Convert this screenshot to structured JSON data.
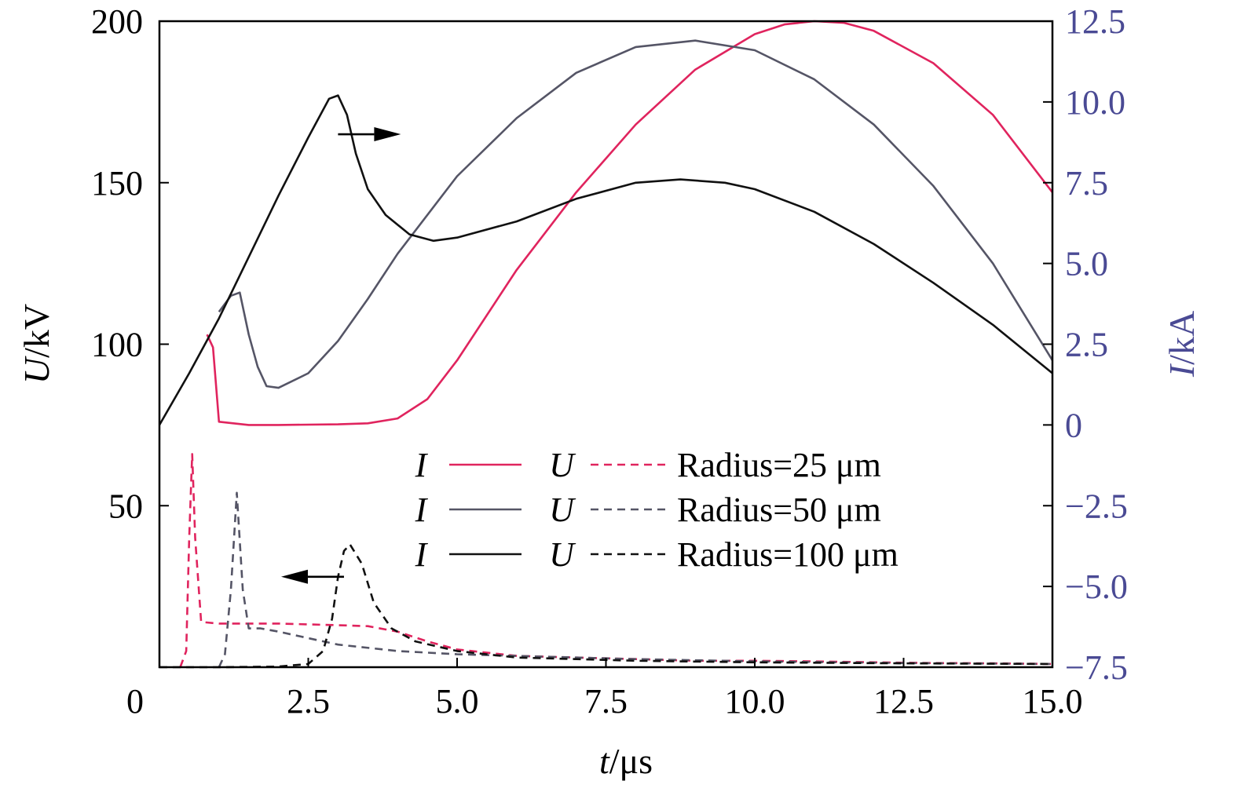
{
  "colors": {
    "axis": "#000000",
    "right_axis": "#4a4a94",
    "r25": "#e0245e",
    "r50": "#555566",
    "r50_tail": "#4a4a94",
    "r100": "#111111",
    "arrow": "#000000"
  },
  "chart_data": {
    "type": "line",
    "xlabel": {
      "var": "t",
      "unit": "/μs"
    },
    "ylabel_left": {
      "var": "U",
      "unit": "/kV"
    },
    "ylabel_right": {
      "var": "I",
      "unit": "/kA"
    },
    "xlim": [
      0,
      15
    ],
    "ylim_left": [
      0,
      200
    ],
    "ylim_right": [
      -7.5,
      12.5
    ],
    "x_ticks": [
      "0",
      "2.5",
      "5.0",
      "7.5",
      "10.0",
      "12.5",
      "15.0"
    ],
    "x_tick_values": [
      0,
      2.5,
      5.0,
      7.5,
      10.0,
      12.5,
      15.0
    ],
    "y_left_ticks": [
      "50",
      "100",
      "150",
      "200"
    ],
    "y_left_tick_values": [
      50,
      100,
      150,
      200
    ],
    "y_right_ticks": [
      "12.5",
      "10.0",
      "7.5",
      "5.0",
      "2.5",
      "0",
      "−2.5",
      "−5.0",
      "−7.5"
    ],
    "y_right_tick_values": [
      12.5,
      10.0,
      7.5,
      5.0,
      2.5,
      0,
      -2.5,
      -5.0,
      -7.5
    ],
    "legend": [
      {
        "i_label": "I",
        "u_label": "U",
        "text": "Radius=25 μm",
        "color_key": "r25"
      },
      {
        "i_label": "I",
        "u_label": "U",
        "text": "Radius=50 μm",
        "color_key": "r50"
      },
      {
        "i_label": "I",
        "u_label": "U",
        "text": "Radius=100 μm",
        "color_key": "r100"
      }
    ],
    "annotations": [
      {
        "type": "arrow",
        "points_to": "right_axis",
        "at": [
          3.0,
          9.0
        ]
      },
      {
        "type": "arrow",
        "points_to": "left_axis",
        "at": [
          3.1,
          28
        ]
      }
    ],
    "series": [
      {
        "name": "Radius=25 μm",
        "quantity": "I",
        "axis": "right",
        "style": "solid",
        "color_key": "r25",
        "x": [
          0.8,
          0.9,
          1.0,
          1.5,
          2.0,
          3.0,
          3.5,
          4.0,
          4.5,
          5.0,
          6.0,
          7.0,
          8.0,
          9.0,
          10.0,
          10.5,
          11.0,
          11.5,
          12.0,
          13.0,
          14.0,
          15.0
        ],
        "y": [
          2.8,
          2.4,
          0.1,
          0.0,
          0.0,
          0.02,
          0.05,
          0.2,
          0.8,
          2.0,
          4.8,
          7.2,
          9.3,
          11.0,
          12.1,
          12.4,
          12.5,
          12.45,
          12.2,
          11.2,
          9.6,
          7.2
        ]
      },
      {
        "name": "Radius=50 μm",
        "quantity": "I",
        "axis": "right",
        "style": "solid",
        "color_key": "r50",
        "x": [
          1.0,
          1.2,
          1.35,
          1.5,
          1.65,
          1.8,
          2.0,
          2.5,
          3.0,
          3.5,
          4.0,
          5.0,
          6.0,
          7.0,
          8.0,
          9.0,
          10.0,
          11.0,
          12.0,
          13.0,
          14.0,
          15.0
        ],
        "y": [
          3.5,
          4.0,
          4.1,
          2.8,
          1.8,
          1.2,
          1.15,
          1.6,
          2.6,
          3.9,
          5.3,
          7.7,
          9.5,
          10.9,
          11.7,
          11.9,
          11.6,
          10.7,
          9.3,
          7.4,
          5.0,
          2.0
        ]
      },
      {
        "name": "Radius=100 μm",
        "quantity": "I",
        "axis": "right",
        "style": "solid",
        "color_key": "r100",
        "x": [
          0.0,
          0.5,
          1.0,
          1.5,
          2.0,
          2.5,
          2.85,
          3.0,
          3.15,
          3.3,
          3.5,
          3.8,
          4.2,
          4.6,
          5.0,
          6.0,
          7.0,
          8.0,
          8.75,
          9.5,
          10.0,
          11.0,
          12.0,
          13.0,
          14.0,
          15.0
        ],
        "y": [
          0.0,
          1.6,
          3.3,
          5.2,
          7.1,
          8.9,
          10.1,
          10.2,
          9.6,
          8.4,
          7.3,
          6.5,
          5.9,
          5.7,
          5.8,
          6.3,
          7.0,
          7.5,
          7.6,
          7.5,
          7.3,
          6.6,
          5.6,
          4.4,
          3.1,
          1.6
        ]
      },
      {
        "name": "Radius=25 μm",
        "quantity": "U",
        "axis": "left",
        "style": "dashed",
        "color_key": "r25",
        "x": [
          0.35,
          0.45,
          0.5,
          0.55,
          0.6,
          0.7,
          1.0,
          1.5,
          2.0,
          3.0,
          3.5,
          4.0,
          4.5,
          5.0,
          6.0,
          7.0,
          8.0,
          9.0,
          10.0,
          11.0,
          12.0,
          13.0,
          14.0,
          15.0
        ],
        "y": [
          0.0,
          5.0,
          40.0,
          66.0,
          40.0,
          14.0,
          13.5,
          13.5,
          13.5,
          13.0,
          12.7,
          11.0,
          8.0,
          5.5,
          3.5,
          3.0,
          2.5,
          2.0,
          2.0,
          1.8,
          1.5,
          1.3,
          1.2,
          1.0
        ]
      },
      {
        "name": "Radius=50 μm",
        "quantity": "U",
        "axis": "left",
        "style": "dashed",
        "color_key": "r50",
        "x": [
          1.0,
          1.1,
          1.2,
          1.3,
          1.4,
          1.5,
          1.7,
          2.0,
          2.5,
          3.0,
          4.0,
          5.0,
          6.0,
          7.0,
          8.0,
          10.0,
          12.5,
          15.0
        ],
        "y": [
          0.0,
          4.0,
          24.0,
          54.0,
          24.0,
          12.0,
          12.0,
          11.0,
          9.0,
          7.0,
          5.0,
          4.0,
          3.5,
          3.0,
          2.5,
          1.8,
          1.3,
          1.0
        ]
      },
      {
        "name": "Radius=100 μm",
        "quantity": "U",
        "axis": "left",
        "style": "dashed",
        "color_key": "r100",
        "x": [
          0.0,
          1.0,
          2.0,
          2.5,
          2.75,
          2.9,
          3.0,
          3.1,
          3.2,
          3.4,
          3.6,
          3.9,
          4.3,
          5.0,
          6.0,
          7.0,
          8.0,
          10.0,
          12.5,
          15.0
        ],
        "y": [
          0.0,
          0.0,
          0.2,
          1.0,
          5.0,
          15.0,
          28.0,
          36.0,
          38.0,
          32.0,
          20.0,
          12.0,
          8.0,
          5.0,
          3.0,
          2.5,
          2.0,
          1.5,
          1.2,
          1.0
        ]
      }
    ]
  }
}
